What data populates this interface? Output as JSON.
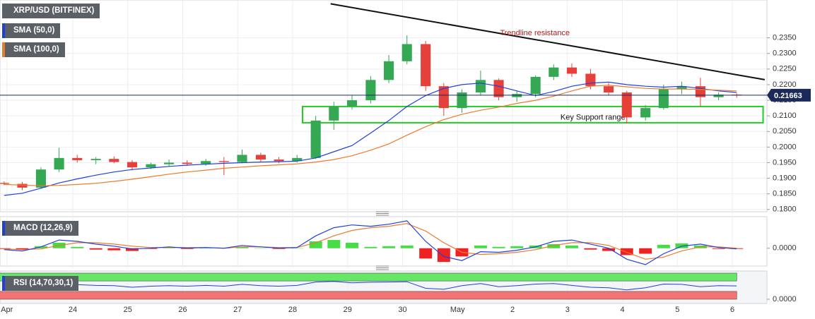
{
  "chart_data": [
    {
      "type": "candlestick",
      "title": "XRP/USD (BITFINEX)",
      "x": [
        22.75,
        23.08,
        23.42,
        23.75,
        24.08,
        24.42,
        24.75,
        25.08,
        25.42,
        25.75,
        26.08,
        26.42,
        26.75,
        27.08,
        27.42,
        27.75,
        28.08,
        28.42,
        28.75,
        29.08,
        29.42,
        29.75,
        30.08,
        30.42,
        30.75,
        31.08,
        31.42,
        31.75,
        32.08,
        32.42,
        32.75,
        33.08,
        33.42,
        33.75,
        34.08,
        34.42,
        34.75,
        35.08,
        35.42,
        35.75,
        36.08
      ],
      "open": [
        0.1885,
        0.1882,
        0.187,
        0.1928,
        0.1965,
        0.1958,
        0.1962,
        0.1952,
        0.1935,
        0.1945,
        0.195,
        0.1946,
        0.1955,
        0.1952,
        0.1975,
        0.196,
        0.1955,
        0.1965,
        0.2085,
        0.213,
        0.215,
        0.2215,
        0.2275,
        0.233,
        0.2195,
        0.2125,
        0.2175,
        0.2215,
        0.216,
        0.217,
        0.2225,
        0.2255,
        0.2235,
        0.2195,
        0.2175,
        0.2095,
        0.2125,
        0.2185,
        0.2195,
        0.216,
        0.2168
      ],
      "high": [
        0.189,
        0.1888,
        0.1935,
        0.1998,
        0.1975,
        0.1968,
        0.197,
        0.1958,
        0.195,
        0.196,
        0.1958,
        0.1962,
        0.1968,
        0.1992,
        0.1982,
        0.1968,
        0.1975,
        0.21,
        0.2145,
        0.2165,
        0.2228,
        0.2295,
        0.2358,
        0.234,
        0.2205,
        0.2185,
        0.2245,
        0.222,
        0.218,
        0.223,
        0.2265,
        0.2268,
        0.225,
        0.2205,
        0.218,
        0.2135,
        0.22,
        0.221,
        0.2222,
        0.2175,
        0.2172
      ],
      "low": [
        0.1878,
        0.1862,
        0.1866,
        0.192,
        0.195,
        0.1945,
        0.1948,
        0.1925,
        0.193,
        0.1938,
        0.194,
        0.194,
        0.191,
        0.1948,
        0.1952,
        0.1948,
        0.195,
        0.1962,
        0.2055,
        0.212,
        0.214,
        0.2205,
        0.2265,
        0.218,
        0.21,
        0.211,
        0.2165,
        0.215,
        0.2145,
        0.216,
        0.2215,
        0.2225,
        0.2185,
        0.2165,
        0.2075,
        0.2085,
        0.212,
        0.217,
        0.213,
        0.215,
        0.2158
      ],
      "close": [
        0.1882,
        0.187,
        0.1928,
        0.1965,
        0.1958,
        0.1962,
        0.1952,
        0.1935,
        0.1945,
        0.195,
        0.1946,
        0.1955,
        0.1952,
        0.1975,
        0.196,
        0.1955,
        0.1965,
        0.2085,
        0.213,
        0.215,
        0.2215,
        0.2275,
        0.233,
        0.2195,
        0.2125,
        0.2175,
        0.2215,
        0.216,
        0.217,
        0.2225,
        0.2255,
        0.2235,
        0.2195,
        0.2175,
        0.2095,
        0.2125,
        0.2185,
        0.2195,
        0.216,
        0.2168,
        0.21663
      ],
      "up_color": "#34a853",
      "down_color": "#e5413a",
      "series": [
        {
          "name": "SMA (50,0)",
          "color": "#2040d8",
          "values": [
            0.1845,
            0.1852,
            0.1868,
            0.1885,
            0.1898,
            0.191,
            0.192,
            0.1928,
            0.1933,
            0.1938,
            0.1942,
            0.1945,
            0.1948,
            0.195,
            0.1952,
            0.1953,
            0.1955,
            0.1965,
            0.1985,
            0.2005,
            0.2045,
            0.2085,
            0.213,
            0.2165,
            0.2188,
            0.22,
            0.2205,
            0.2195,
            0.218,
            0.2165,
            0.2178,
            0.2195,
            0.2205,
            0.2208,
            0.22,
            0.2195,
            0.2192,
            0.2195,
            0.2188,
            0.218,
            0.2175
          ]
        },
        {
          "name": "SMA (100,0)",
          "color": "#ec7a2c",
          "values": [
            0.188,
            0.1878,
            0.1876,
            0.1877,
            0.188,
            0.1884,
            0.189,
            0.1897,
            0.1905,
            0.1913,
            0.192,
            0.1926,
            0.1932,
            0.1936,
            0.194,
            0.1943,
            0.1946,
            0.1952,
            0.196,
            0.1972,
            0.199,
            0.201,
            0.2038,
            0.2065,
            0.2088,
            0.2105,
            0.2118,
            0.2128,
            0.214,
            0.215,
            0.2163,
            0.218,
            0.2195,
            0.2198,
            0.2193,
            0.2188,
            0.2186,
            0.2186,
            0.2185,
            0.2182,
            0.218
          ]
        }
      ],
      "xlim": [
        22.675,
        36.63
      ],
      "ylim": [
        0.1795,
        0.246
      ],
      "yticks": [
        {
          "value": 0.18,
          "label": "0.1800"
        },
        {
          "value": 0.185,
          "label": "0.1850"
        },
        {
          "value": 0.19,
          "label": "0.1900"
        },
        {
          "value": 0.195,
          "label": "0.1950"
        },
        {
          "value": 0.2,
          "label": "0.2000"
        },
        {
          "value": 0.205,
          "label": "0.2050"
        },
        {
          "value": 0.21,
          "label": "0.2100"
        },
        {
          "value": 0.215,
          "label": "0.2150"
        },
        {
          "value": 0.22,
          "label": "0.2200"
        },
        {
          "value": 0.225,
          "label": "0.2250"
        },
        {
          "value": 0.23,
          "label": "0.2300"
        },
        {
          "value": 0.235,
          "label": "0.2350"
        }
      ],
      "grid": true,
      "last_price": {
        "value": 0.21663,
        "label": "0.21663",
        "color": "#1c2a5a"
      },
      "trendline": {
        "label": "Trendline resistance",
        "color": "#111111",
        "label_color": "#b0201b",
        "x": [
          28.69,
          36.59
        ],
        "y": [
          0.2459,
          0.2216
        ]
      },
      "support": {
        "label": "Key Support range",
        "color": "#22cc22",
        "x": [
          28.18,
          36.56
        ],
        "y": [
          0.2078,
          0.213
        ]
      }
    },
    {
      "type": "macd",
      "title": "MACD (12,26,9)",
      "x": [
        22.75,
        23.08,
        23.42,
        23.75,
        24.08,
        24.42,
        24.75,
        25.08,
        25.42,
        25.75,
        26.08,
        26.42,
        26.75,
        27.08,
        27.42,
        27.75,
        28.08,
        28.42,
        28.75,
        29.08,
        29.42,
        29.75,
        30.08,
        30.42,
        30.75,
        31.08,
        31.42,
        31.75,
        32.08,
        32.42,
        32.75,
        33.08,
        33.42,
        33.75,
        34.08,
        34.42,
        34.75,
        35.08,
        35.42,
        35.75,
        36.08
      ],
      "macd": {
        "color": "#2040d8",
        "values": [
          -0.0002,
          -0.0004,
          0.0002,
          0.0012,
          0.001,
          0.0006,
          0.0003,
          -0.0001,
          0.0,
          0.0002,
          0.0,
          0.0001,
          0.0,
          0.0004,
          0.0002,
          0.0,
          0.0001,
          0.0018,
          0.003,
          0.0034,
          0.0032,
          0.0035,
          0.004,
          0.001,
          -0.0012,
          -0.0018,
          -0.0005,
          -0.0006,
          -0.0003,
          0.0002,
          0.001,
          0.0012,
          0.0006,
          0.0,
          -0.0016,
          -0.0024,
          -0.0008,
          0.0003,
          0.0006,
          0.0001,
          -0.0001
        ]
      },
      "signal": {
        "color": "#ec7a2c",
        "values": [
          -0.0001,
          -0.0002,
          -0.0001,
          0.0004,
          0.0008,
          0.0008,
          0.0006,
          0.0003,
          0.0001,
          0.0001,
          0.0001,
          0.0001,
          0.0,
          0.0002,
          0.0002,
          0.0001,
          0.0001,
          0.0008,
          0.0018,
          0.0026,
          0.003,
          0.0032,
          0.0036,
          0.0025,
          0.0008,
          -0.0006,
          -0.0009,
          -0.0008,
          -0.0006,
          -0.0002,
          0.0004,
          0.0008,
          0.0008,
          0.0004,
          -0.0006,
          -0.0016,
          -0.0013,
          -0.0004,
          0.0002,
          0.0002,
          0.0
        ]
      },
      "histogram": {
        "up_color": "#44dd44",
        "down_color": "#ee2222",
        "values": [
          -0.0001,
          -0.0002,
          0.0003,
          0.0008,
          0.0002,
          -0.0002,
          -0.0003,
          -0.0004,
          -0.0001,
          0.0001,
          -0.0001,
          0.0,
          0.0,
          0.0002,
          0.0,
          -0.0001,
          0.0,
          0.001,
          0.0012,
          0.0008,
          0.0002,
          0.0003,
          0.0004,
          -0.0015,
          -0.002,
          -0.0012,
          0.0004,
          0.0002,
          0.0003,
          0.0004,
          0.0006,
          0.0004,
          -0.0002,
          -0.0004,
          -0.001,
          -0.0008,
          0.0005,
          0.0007,
          0.0004,
          -0.0001,
          -0.0001
        ]
      },
      "xlim": [
        22.675,
        36.63
      ],
      "ylim": [
        -0.0025,
        0.0045
      ],
      "yticks": [
        {
          "value": 0,
          "label": "0.0000"
        }
      ]
    },
    {
      "type": "line",
      "title": "RSI (14,70,30,1)",
      "x": [
        22.75,
        23.08,
        23.42,
        23.75,
        24.08,
        24.42,
        24.75,
        25.08,
        25.42,
        25.75,
        26.08,
        26.42,
        26.75,
        27.08,
        27.42,
        27.75,
        28.08,
        28.42,
        28.75,
        29.08,
        29.42,
        29.75,
        30.08,
        30.42,
        30.75,
        31.08,
        31.42,
        31.75,
        32.08,
        32.42,
        32.75,
        33.08,
        33.42,
        33.75,
        34.08,
        34.42,
        34.75,
        35.08,
        35.42,
        35.75,
        36.08
      ],
      "values": [
        48,
        45,
        62,
        66,
        56,
        53,
        52,
        46,
        50,
        52,
        50,
        53,
        50,
        57,
        52,
        50,
        53,
        66,
        68,
        63,
        65,
        66,
        67,
        42,
        38,
        52,
        60,
        48,
        52,
        58,
        60,
        53,
        46,
        44,
        36,
        44,
        58,
        57,
        48,
        52,
        51
      ],
      "color": "#2040d8",
      "bands": [
        {
          "from": 70,
          "to": 100,
          "color": "#66e866"
        },
        {
          "from": 0,
          "to": 30,
          "color": "#f27474"
        }
      ],
      "xlim": [
        22.675,
        36.63
      ],
      "ylim": [
        0,
        100
      ],
      "yticks": [
        {
          "value": 0,
          "label": "0.0000"
        }
      ],
      "xticks": [
        {
          "value": 22.8,
          "label": "Apr"
        },
        24,
        25,
        26,
        27,
        28,
        29,
        30,
        {
          "value": 31,
          "label": "May"
        },
        {
          "value": 32,
          "label": "2"
        },
        {
          "value": 33,
          "label": "3"
        },
        {
          "value": 34,
          "label": "4"
        },
        {
          "value": 35,
          "label": "5"
        },
        {
          "value": 36,
          "label": "6"
        }
      ]
    }
  ]
}
